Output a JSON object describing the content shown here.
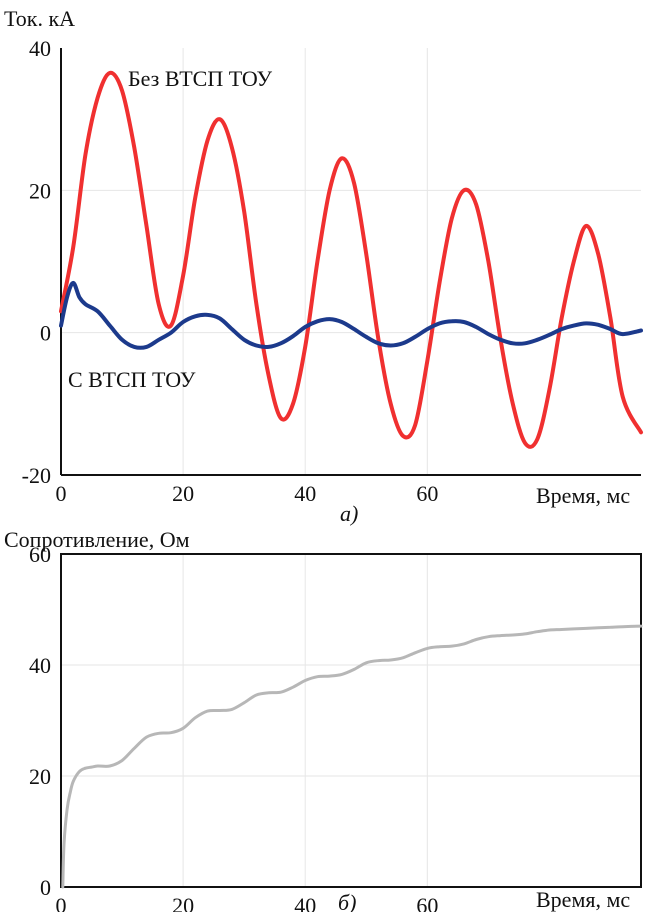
{
  "colors": {
    "red": "#f03030",
    "blue": "#1c3a8c",
    "gray": "#b7b7b7"
  },
  "chart_data": [
    {
      "type": "line",
      "caption": "а)",
      "ylabel": "Ток. кА",
      "xlabel": "Время, мс",
      "xlim": [
        0,
        95
      ],
      "ylim": [
        -20,
        40
      ],
      "xticks": [
        0,
        20,
        40,
        60
      ],
      "yticks": [
        -20,
        0,
        20,
        40
      ],
      "grid": true,
      "series": [
        {
          "name": "Без ВТСП ТОУ",
          "color": "#f03030",
          "x": [
            0,
            2,
            4,
            6,
            8,
            10,
            12,
            14,
            16,
            18,
            20,
            22,
            24,
            26,
            28,
            30,
            32,
            34,
            36,
            38,
            40,
            42,
            44,
            46,
            48,
            50,
            52,
            54,
            56,
            58,
            60,
            62,
            64,
            66,
            68,
            70,
            72,
            74,
            76,
            78,
            80,
            82,
            84,
            86,
            88,
            90,
            92,
            95
          ],
          "y": [
            3,
            12,
            25,
            33,
            36.5,
            34,
            26,
            15,
            4,
            1,
            8,
            19,
            27,
            30,
            26,
            17,
            4,
            -6,
            -12,
            -10,
            -2,
            10,
            20,
            24.5,
            21,
            11,
            -1,
            -10,
            -14.5,
            -13,
            -4,
            7,
            16,
            20,
            18,
            10,
            -1,
            -10,
            -15.5,
            -15,
            -8,
            2,
            10,
            15,
            11,
            2,
            -9,
            -14
          ]
        },
        {
          "name": "С ВТСП ТОУ",
          "color": "#1c3a8c",
          "x": [
            0,
            1,
            2,
            3,
            4,
            6,
            8,
            10,
            12,
            14,
            16,
            18,
            20,
            22,
            24,
            26,
            28,
            30,
            32,
            34,
            36,
            38,
            40,
            42,
            44,
            46,
            48,
            50,
            52,
            54,
            56,
            58,
            60,
            62,
            64,
            66,
            68,
            70,
            72,
            74,
            76,
            78,
            80,
            82,
            84,
            86,
            88,
            90,
            92,
            95
          ],
          "y": [
            1,
            5,
            7,
            5,
            4,
            3,
            1,
            -1,
            -2,
            -2,
            -1,
            0,
            1.5,
            2.3,
            2.5,
            2,
            0.5,
            -1,
            -1.8,
            -2,
            -1.5,
            -0.5,
            0.8,
            1.6,
            1.9,
            1.5,
            0.5,
            -0.6,
            -1.5,
            -1.8,
            -1.5,
            -0.6,
            0.5,
            1.3,
            1.6,
            1.5,
            0.8,
            -0.2,
            -1,
            -1.5,
            -1.5,
            -1,
            -0.3,
            0.5,
            1,
            1.3,
            1.1,
            0.5,
            -0.2,
            0.3
          ]
        }
      ],
      "annotations": [
        "Без ВТСП ТОУ",
        "С ВТСП ТОУ"
      ]
    },
    {
      "type": "line",
      "caption": "б)",
      "ylabel": "Сопротивление, Ом",
      "xlabel": "Время, мс",
      "xlim": [
        0,
        95
      ],
      "ylim": [
        0,
        60
      ],
      "xticks": [
        0,
        20,
        40,
        60
      ],
      "yticks": [
        0,
        20,
        40,
        60
      ],
      "grid": true,
      "series": [
        {
          "color": "#b7b7b7",
          "x": [
            0.3,
            0.5,
            1,
            1.5,
            2,
            3,
            4,
            5,
            6,
            8,
            10,
            12,
            14,
            16,
            18,
            20,
            22,
            24,
            26,
            28,
            30,
            32,
            34,
            36,
            38,
            40,
            42,
            44,
            46,
            48,
            50,
            52,
            54,
            56,
            58,
            60,
            62,
            64,
            66,
            68,
            70,
            72,
            74,
            76,
            78,
            80,
            82,
            84,
            86,
            88,
            90,
            92,
            95
          ],
          "y": [
            0,
            8,
            14,
            17,
            19,
            20.8,
            21.4,
            21.6,
            21.8,
            21.8,
            22.8,
            25,
            27,
            27.7,
            27.8,
            28.6,
            30.5,
            31.7,
            31.8,
            32,
            33.2,
            34.6,
            35,
            35.1,
            36,
            37.2,
            37.9,
            38,
            38.3,
            39.2,
            40.4,
            40.8,
            40.9,
            41.3,
            42.2,
            43,
            43.3,
            43.4,
            43.8,
            44.6,
            45.1,
            45.3,
            45.4,
            45.6,
            46,
            46.3,
            46.4,
            46.5,
            46.6,
            46.7,
            46.8,
            46.9,
            47
          ]
        }
      ]
    }
  ]
}
